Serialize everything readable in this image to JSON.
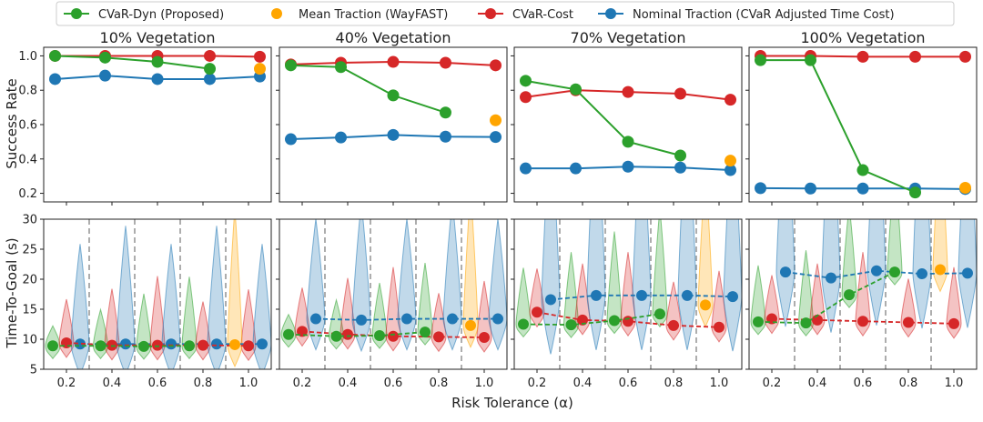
{
  "colors": {
    "cvar_dyn": "#2ca02c",
    "mean_traction": "#ffa500",
    "cvar_cost": "#d62728",
    "nominal": "#1f77b4",
    "sep": "#999999"
  },
  "chart_data": {
    "type": "line",
    "xlabel": "Risk Tolerance (α)",
    "ylabel_top": "Success Rate",
    "ylabel_bottom": "Time-To-Goal (s)",
    "legend": {
      "placement": "top",
      "entries": [
        {
          "key": "cvar_dyn",
          "label": "CVaR-Dyn (Proposed)"
        },
        {
          "key": "mean_traction",
          "label": "Mean Traction (WayFAST)"
        },
        {
          "key": "cvar_cost",
          "label": "CVaR-Cost"
        },
        {
          "key": "nominal",
          "label": "Nominal Traction (CVaR Adjusted Time Cost)"
        }
      ]
    },
    "xlim": [
      0.1,
      1.1
    ],
    "xticks": [
      "0.2",
      "0.4",
      "0.6",
      "0.8",
      "1.0"
    ],
    "top_ylim": [
      0.15,
      1.05
    ],
    "top_yticks": [
      "0.2",
      "0.4",
      "0.6",
      "0.8",
      "1.0"
    ],
    "bottom_ylim": [
      5,
      30
    ],
    "bottom_yticks": [
      "5",
      "10",
      "15",
      "20",
      "25",
      "30"
    ],
    "groups": [
      0.2,
      0.4,
      0.6,
      0.8,
      1.0
    ],
    "group_separators": [
      0.3,
      0.5,
      0.7,
      0.9
    ],
    "panels": [
      {
        "title": "10% Vegetation",
        "success": {
          "cvar_dyn": {
            "x": [
              0.15,
              0.37,
              0.6,
              0.83
            ],
            "y": [
              1.0,
              0.99,
              0.965,
              0.925
            ]
          },
          "cvar_cost": {
            "x": [
              0.15,
              0.37,
              0.6,
              0.83,
              1.05
            ],
            "y": [
              1.0,
              1.0,
              1.0,
              1.0,
              0.995
            ]
          },
          "nominal": {
            "x": [
              0.15,
              0.37,
              0.6,
              0.83,
              1.05
            ],
            "y": [
              0.865,
              0.885,
              0.865,
              0.865,
              0.88
            ]
          },
          "mean_traction": {
            "x": [
              1.05
            ],
            "y": [
              0.925
            ]
          }
        },
        "time": {
          "cvar_dyn": {
            "x": [
              0.14,
              0.35,
              0.54,
              0.74
            ],
            "y": [
              8.9,
              8.9,
              8.8,
              8.9
            ]
          },
          "cvar_cost": {
            "x": [
              0.2,
              0.4,
              0.6,
              0.8,
              1.0
            ],
            "y": [
              9.4,
              9.0,
              9.0,
              9.0,
              8.9
            ]
          },
          "nominal": {
            "x": [
              0.26,
              0.46,
              0.66,
              0.86,
              1.06
            ],
            "y": [
              9.2,
              9.2,
              9.2,
              9.2,
              9.2
            ]
          },
          "mean_traction": {
            "x": [
              0.94
            ],
            "y": [
              9.1
            ]
          }
        }
      },
      {
        "title": "40% Vegetation",
        "success": {
          "cvar_dyn": {
            "x": [
              0.15,
              0.37,
              0.6,
              0.83
            ],
            "y": [
              0.945,
              0.935,
              0.77,
              0.67
            ]
          },
          "cvar_cost": {
            "x": [
              0.15,
              0.37,
              0.6,
              0.83,
              1.05
            ],
            "y": [
              0.95,
              0.96,
              0.965,
              0.96,
              0.945
            ]
          },
          "nominal": {
            "x": [
              0.15,
              0.37,
              0.6,
              0.83,
              1.05
            ],
            "y": [
              0.515,
              0.525,
              0.54,
              0.53,
              0.528
            ]
          },
          "mean_traction": {
            "x": [
              1.05
            ],
            "y": [
              0.625
            ]
          }
        },
        "time": {
          "cvar_dyn": {
            "x": [
              0.14,
              0.35,
              0.54,
              0.74
            ],
            "y": [
              10.8,
              10.5,
              10.6,
              11.2
            ]
          },
          "cvar_cost": {
            "x": [
              0.2,
              0.4,
              0.6,
              0.8,
              1.0
            ],
            "y": [
              11.3,
              10.8,
              10.5,
              10.4,
              10.3
            ]
          },
          "nominal": {
            "x": [
              0.26,
              0.46,
              0.66,
              0.86,
              1.06
            ],
            "y": [
              13.4,
              13.2,
              13.4,
              13.4,
              13.4
            ]
          },
          "mean_traction": {
            "x": [
              0.94
            ],
            "y": [
              12.3
            ]
          }
        }
      },
      {
        "title": "70% Vegetation",
        "success": {
          "cvar_dyn": {
            "x": [
              0.15,
              0.37,
              0.6,
              0.83
            ],
            "y": [
              0.855,
              0.805,
              0.5,
              0.42
            ]
          },
          "cvar_cost": {
            "x": [
              0.15,
              0.37,
              0.6,
              0.83,
              1.05
            ],
            "y": [
              0.76,
              0.8,
              0.79,
              0.78,
              0.745
            ]
          },
          "nominal": {
            "x": [
              0.15,
              0.37,
              0.6,
              0.83,
              1.05
            ],
            "y": [
              0.345,
              0.345,
              0.355,
              0.35,
              0.335
            ]
          },
          "mean_traction": {
            "x": [
              1.05
            ],
            "y": [
              0.39
            ]
          }
        },
        "time": {
          "cvar_dyn": {
            "x": [
              0.14,
              0.35,
              0.54,
              0.74
            ],
            "y": [
              12.5,
              12.4,
              13.1,
              14.2
            ]
          },
          "cvar_cost": {
            "x": [
              0.2,
              0.4,
              0.6,
              0.8,
              1.0
            ],
            "y": [
              14.5,
              13.2,
              13.0,
              12.3,
              12.0
            ]
          },
          "nominal": {
            "x": [
              0.26,
              0.46,
              0.66,
              0.86,
              1.06
            ],
            "y": [
              16.6,
              17.3,
              17.3,
              17.3,
              17.1
            ]
          },
          "mean_traction": {
            "x": [
              0.94
            ],
            "y": [
              15.7
            ]
          }
        }
      },
      {
        "title": "100% Vegetation",
        "success": {
          "cvar_dyn": {
            "x": [
              0.15,
              0.37,
              0.6,
              0.83
            ],
            "y": [
              0.975,
              0.975,
              0.335,
              0.205
            ]
          },
          "cvar_cost": {
            "x": [
              0.15,
              0.37,
              0.6,
              0.83,
              1.05
            ],
            "y": [
              1.0,
              1.0,
              0.995,
              0.995,
              0.995
            ]
          },
          "nominal": {
            "x": [
              0.15,
              0.37,
              0.6,
              0.83,
              1.05
            ],
            "y": [
              0.23,
              0.228,
              0.228,
              0.228,
              0.225
            ]
          },
          "mean_traction": {
            "x": [
              1.05
            ],
            "y": [
              0.232
            ]
          }
        },
        "time": {
          "cvar_dyn": {
            "x": [
              0.14,
              0.35,
              0.54,
              0.74
            ],
            "y": [
              12.9,
              12.7,
              17.4,
              21.2
            ]
          },
          "cvar_cost": {
            "x": [
              0.2,
              0.4,
              0.6,
              0.8,
              1.0
            ],
            "y": [
              13.4,
              13.2,
              13.0,
              12.8,
              12.6
            ]
          },
          "nominal": {
            "x": [
              0.26,
              0.46,
              0.66,
              0.86,
              1.06
            ],
            "y": [
              21.2,
              20.2,
              21.4,
              20.9,
              21.0
            ]
          },
          "mean_traction": {
            "x": [
              0.94
            ],
            "y": [
              21.6
            ]
          }
        }
      }
    ]
  }
}
